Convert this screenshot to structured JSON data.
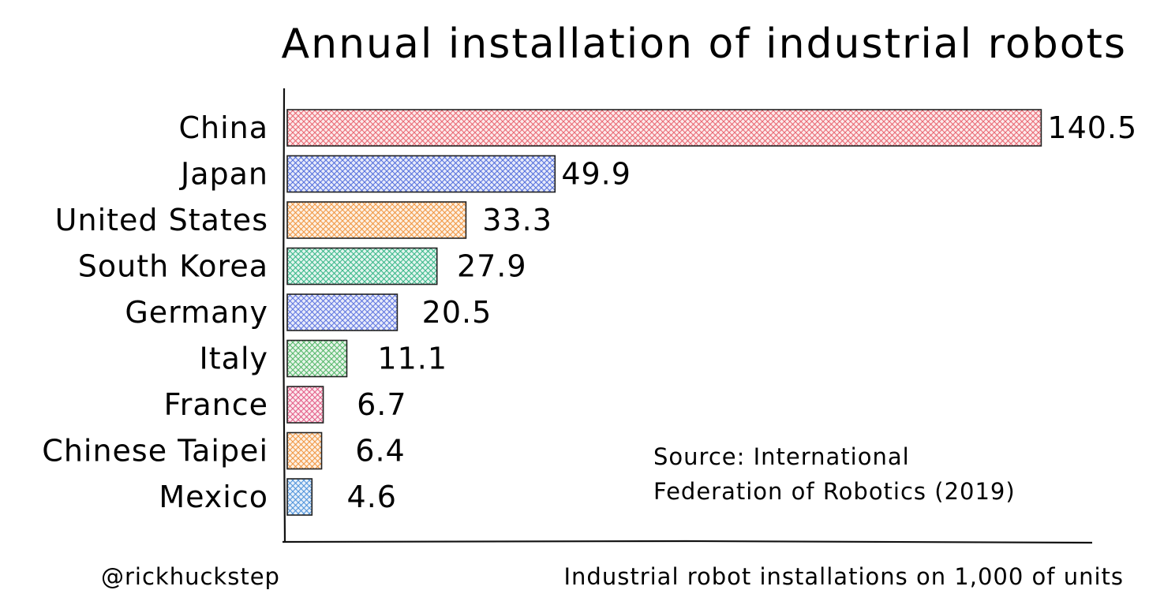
{
  "chart_data": {
    "type": "bar",
    "orientation": "horizontal",
    "title": "Annual installation of industrial robots",
    "categories": [
      "China",
      "Japan",
      "United States",
      "South Korea",
      "Germany",
      "Italy",
      "France",
      "Chinese Taipei",
      "Mexico"
    ],
    "values": [
      140.5,
      49.9,
      33.3,
      27.9,
      20.5,
      11.1,
      6.7,
      6.4,
      4.6
    ],
    "value_labels": [
      "140.5",
      "49.9",
      "33.3",
      "27.9",
      "20.5",
      "11.1",
      "6.7",
      "6.4",
      "4.6"
    ],
    "colors": [
      "#e8535f",
      "#3f5ed8",
      "#ef8a2c",
      "#1fae7a",
      "#4b64dc",
      "#3fae57",
      "#e04878",
      "#ef8a2c",
      "#3a86d6"
    ],
    "xlabel": "Industrial robot installations on 1,000 of units",
    "ylabel": "",
    "annotation": [
      "Source: International",
      "Federation of Robotics (2019)"
    ],
    "credit": "@rickhuckstep",
    "grid": false,
    "legend": "none",
    "style": "hand-drawn, cross-hatched fill"
  }
}
